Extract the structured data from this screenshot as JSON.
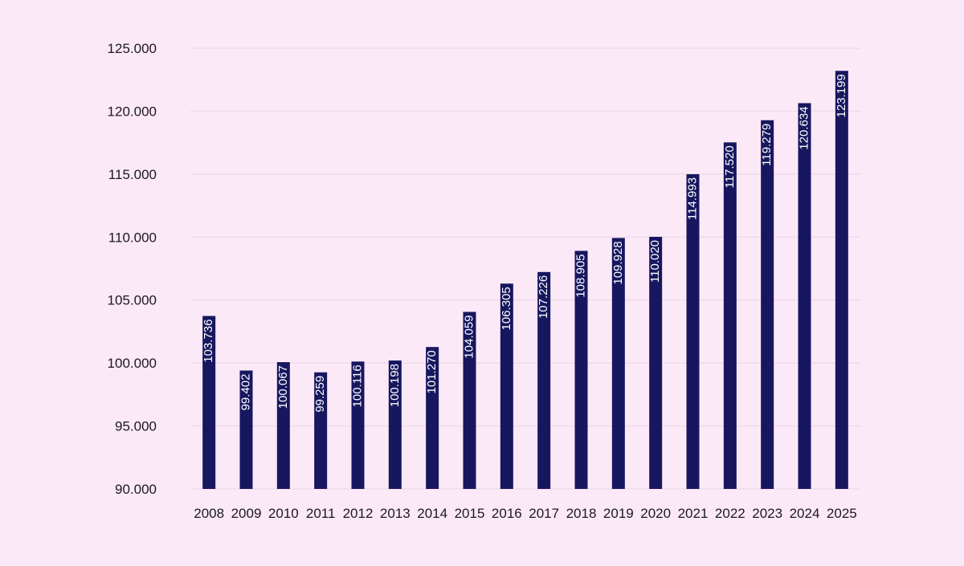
{
  "chart_data": {
    "type": "bar",
    "categories": [
      "2008",
      "2009",
      "2010",
      "2011",
      "2012",
      "2013",
      "2014",
      "2015",
      "2016",
      "2017",
      "2018",
      "2019",
      "2020",
      "2021",
      "2022",
      "2023",
      "2024",
      "2025"
    ],
    "values": [
      103736,
      99402,
      100067,
      99259,
      100116,
      100198,
      101270,
      104059,
      106305,
      107226,
      108905,
      109928,
      110020,
      114993,
      117520,
      119279,
      120634,
      123199
    ],
    "value_labels": [
      "103.736",
      "99.402",
      "100.067",
      "99.259",
      "100.116",
      "100.198",
      "101.270",
      "104.059",
      "106.305",
      "107.226",
      "108.905",
      "109.928",
      "110.020",
      "114.993",
      "117.520",
      "119.279",
      "120.634",
      "123.199"
    ],
    "ylim": [
      90000,
      125000
    ],
    "yticks": [
      90000,
      95000,
      100000,
      105000,
      110000,
      115000,
      120000,
      125000
    ],
    "ytick_labels": [
      "90.000",
      "95.000",
      "100.000",
      "105.000",
      "110.000",
      "115.000",
      "120.000",
      "125.000"
    ],
    "grid": true,
    "bar_color": "#17175f",
    "background_color": "#fce9f8",
    "label_color": "#ffffff"
  }
}
